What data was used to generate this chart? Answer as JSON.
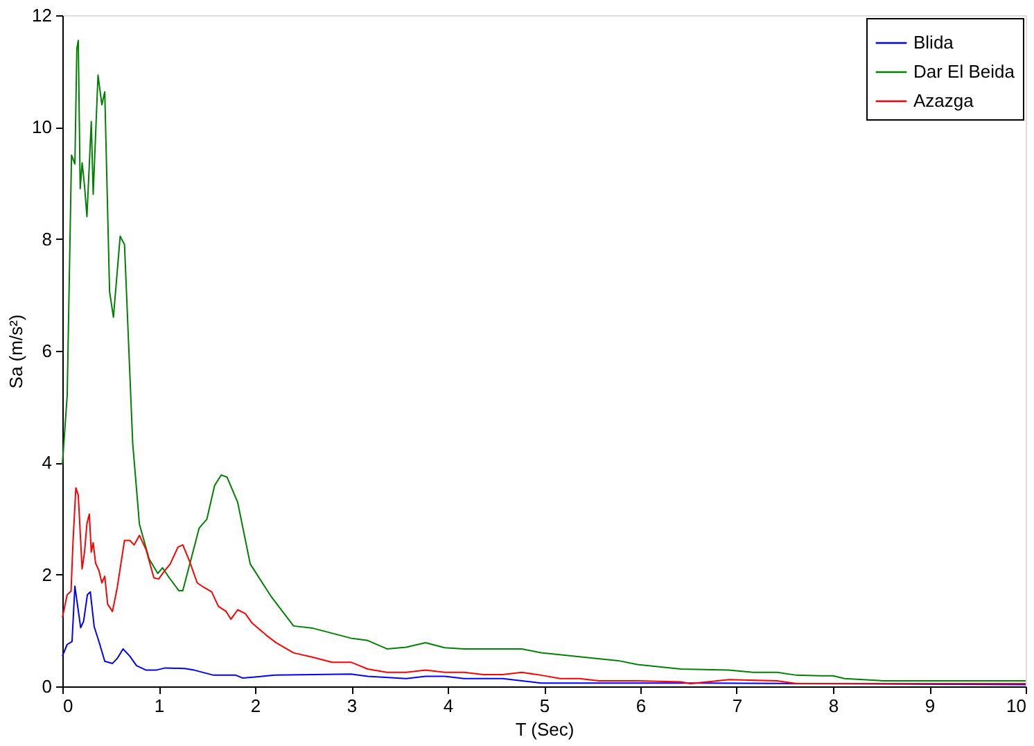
{
  "chart_data": {
    "type": "line",
    "xlabel": "T (Sec)",
    "ylabel": "Sa (m/s²)",
    "xlim": [
      0,
      10
    ],
    "ylim": [
      0,
      12
    ],
    "xticks": [
      0,
      1,
      2,
      3,
      4,
      5,
      6,
      7,
      8,
      9,
      10
    ],
    "yticks": [
      0,
      2,
      4,
      6,
      8,
      10,
      12
    ],
    "grid": false,
    "legend": "top right",
    "line_style": "solid",
    "marker": "none",
    "series": [
      {
        "name": "Blida",
        "color": "#0000ff",
        "x": [
          0,
          0.05,
          0.1,
          0.13,
          0.19,
          0.22,
          0.26,
          0.29,
          0.33,
          0.38,
          0.44,
          0.52,
          0.57,
          0.63,
          0.7,
          0.77,
          0.87,
          0.97,
          1.07,
          1.27,
          1.37,
          1.57,
          1.8,
          1.87,
          2.02,
          2.2,
          3.0,
          3.17,
          3.57,
          3.77,
          3.97,
          4.17,
          4.57,
          4.97,
          6.42,
          10
        ],
        "values": [
          0.54,
          0.75,
          0.8,
          1.79,
          1.05,
          1.16,
          1.64,
          1.69,
          1.07,
          0.8,
          0.45,
          0.41,
          0.5,
          0.67,
          0.54,
          0.37,
          0.29,
          0.29,
          0.33,
          0.32,
          0.29,
          0.2,
          0.2,
          0.15,
          0.17,
          0.2,
          0.22,
          0.18,
          0.14,
          0.18,
          0.18,
          0.14,
          0.14,
          0.06,
          0.06,
          0.03
        ]
      },
      {
        "name": "Dar El Beida",
        "color": "#008000",
        "x": [
          0,
          0.05,
          0.095,
          0.13,
          0.15,
          0.165,
          0.185,
          0.205,
          0.23,
          0.255,
          0.3,
          0.32,
          0.37,
          0.41,
          0.44,
          0.49,
          0.53,
          0.6,
          0.645,
          0.73,
          0.8,
          0.9,
          0.99,
          1.04,
          1.11,
          1.21,
          1.25,
          1.42,
          1.5,
          1.58,
          1.65,
          1.71,
          1.82,
          1.95,
          2.17,
          2.4,
          2.6,
          3.0,
          3.17,
          3.37,
          3.57,
          3.77,
          3.97,
          4.17,
          4.77,
          4.97,
          5.42,
          5.77,
          5.97,
          6.42,
          6.92,
          7.17,
          7.42,
          7.62,
          7.87,
          8.0,
          8.12,
          8.52,
          10
        ],
        "values": [
          3.97,
          5.2,
          9.5,
          9.34,
          11.4,
          11.55,
          8.9,
          9.36,
          8.95,
          8.4,
          10.1,
          8.8,
          10.93,
          10.4,
          10.63,
          7.06,
          6.6,
          8.05,
          7.9,
          4.35,
          2.9,
          2.28,
          2.02,
          2.12,
          1.94,
          1.71,
          1.71,
          2.83,
          2.99,
          3.59,
          3.78,
          3.74,
          3.29,
          2.19,
          1.6,
          1.08,
          1.04,
          0.86,
          0.82,
          0.67,
          0.7,
          0.78,
          0.69,
          0.67,
          0.67,
          0.6,
          0.52,
          0.46,
          0.39,
          0.31,
          0.29,
          0.25,
          0.25,
          0.2,
          0.19,
          0.19,
          0.14,
          0.1,
          0.1
        ]
      },
      {
        "name": "Azazga",
        "color": "#ff0000",
        "x": [
          0,
          0.05,
          0.09,
          0.11,
          0.14,
          0.165,
          0.205,
          0.23,
          0.255,
          0.28,
          0.3,
          0.32,
          0.345,
          0.38,
          0.41,
          0.44,
          0.47,
          0.52,
          0.57,
          0.645,
          0.7,
          0.745,
          0.8,
          0.87,
          0.95,
          1.0,
          1.05,
          1.12,
          1.2,
          1.25,
          1.32,
          1.4,
          1.47,
          1.55,
          1.62,
          1.7,
          1.75,
          1.82,
          1.9,
          1.97,
          2.12,
          2.22,
          2.4,
          2.6,
          2.8,
          3.0,
          3.17,
          3.37,
          3.57,
          3.77,
          3.97,
          4.17,
          4.37,
          4.57,
          4.77,
          4.97,
          5.17,
          5.37,
          5.57,
          5.97,
          6.42,
          6.52,
          6.92,
          7.42,
          7.62,
          10
        ],
        "values": [
          1.23,
          1.64,
          1.7,
          2.57,
          3.55,
          3.42,
          2.1,
          2.4,
          2.91,
          3.08,
          2.4,
          2.57,
          2.2,
          2.07,
          1.85,
          1.97,
          1.47,
          1.34,
          1.77,
          2.61,
          2.61,
          2.53,
          2.7,
          2.44,
          1.94,
          1.92,
          2.04,
          2.19,
          2.49,
          2.53,
          2.24,
          1.85,
          1.77,
          1.69,
          1.43,
          1.34,
          1.2,
          1.37,
          1.3,
          1.13,
          0.91,
          0.78,
          0.6,
          0.52,
          0.43,
          0.43,
          0.31,
          0.25,
          0.25,
          0.29,
          0.25,
          0.25,
          0.21,
          0.21,
          0.25,
          0.2,
          0.14,
          0.14,
          0.1,
          0.1,
          0.08,
          0.05,
          0.12,
          0.1,
          0.05,
          0.05
        ]
      }
    ]
  }
}
